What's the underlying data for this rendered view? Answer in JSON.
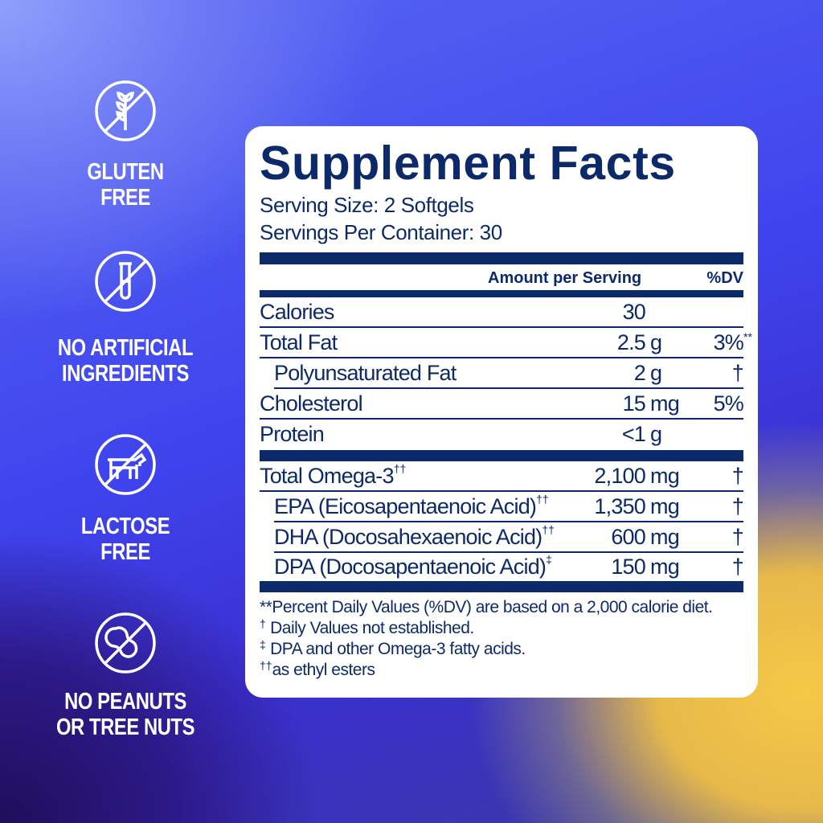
{
  "badges": [
    {
      "icon": "wheat-crossed-icon",
      "lines": [
        "GLUTEN",
        "FREE"
      ]
    },
    {
      "icon": "test-tube-crossed-icon",
      "lines": [
        "NO ARTIFICIAL",
        "INGREDIENTS"
      ]
    },
    {
      "icon": "cow-crossed-icon",
      "lines": [
        "LACTOSE",
        "FREE"
      ]
    },
    {
      "icon": "peanut-crossed-icon",
      "lines": [
        "NO PEANUTS",
        "OR TREE NUTS"
      ]
    }
  ],
  "facts": {
    "title": "Supplement Facts",
    "serving_size": "Serving Size: 2 Softgels",
    "servings_per_container": "Servings Per Container: 30",
    "header_amount": "Amount per Serving",
    "header_dv": "%DV",
    "rows": [
      {
        "name": "Calories",
        "amount": "30",
        "unit": "",
        "dv": ""
      },
      {
        "name": "Total Fat",
        "amount": "2.5",
        "unit": "g",
        "dv": "3%",
        "dv_mark": "**"
      },
      {
        "name": "Polyunsaturated Fat",
        "amount": "2",
        "unit": "g",
        "dv": "†"
      },
      {
        "name": "Cholesterol",
        "amount": "15",
        "unit": "mg",
        "dv": "5%"
      },
      {
        "name": "Protein",
        "amount": "<1",
        "unit": "g",
        "dv": ""
      }
    ],
    "omega_rows": [
      {
        "name": "Total Omega-3",
        "mark": "††",
        "amount": "2,100",
        "unit": "mg",
        "dv": "†"
      },
      {
        "name": "EPA (Eicosapentaenoic Acid)",
        "mark": "††",
        "amount": "1,350",
        "unit": "mg",
        "dv": "†"
      },
      {
        "name": "DHA (Docosahexaenoic Acid)",
        "mark": "††",
        "amount": "600",
        "unit": "mg",
        "dv": "†"
      },
      {
        "name": "DPA (Docosapentaenoic Acid)",
        "mark": "‡",
        "amount": "150",
        "unit": "mg",
        "dv": "†"
      }
    ],
    "footnotes": [
      {
        "mark": "**",
        "text": "Percent Daily Values (%DV) are based on a 2,000 calorie diet."
      },
      {
        "mark": "†",
        "text": " Daily Values not established."
      },
      {
        "mark": "‡",
        "text": " DPA and other Omega-3 fatty acids."
      },
      {
        "mark": "††",
        "text": "as ethyl esters"
      }
    ]
  },
  "colors": {
    "navy": "#0c2a6a",
    "panel": "#ffffff",
    "badge": "#ffffff"
  }
}
